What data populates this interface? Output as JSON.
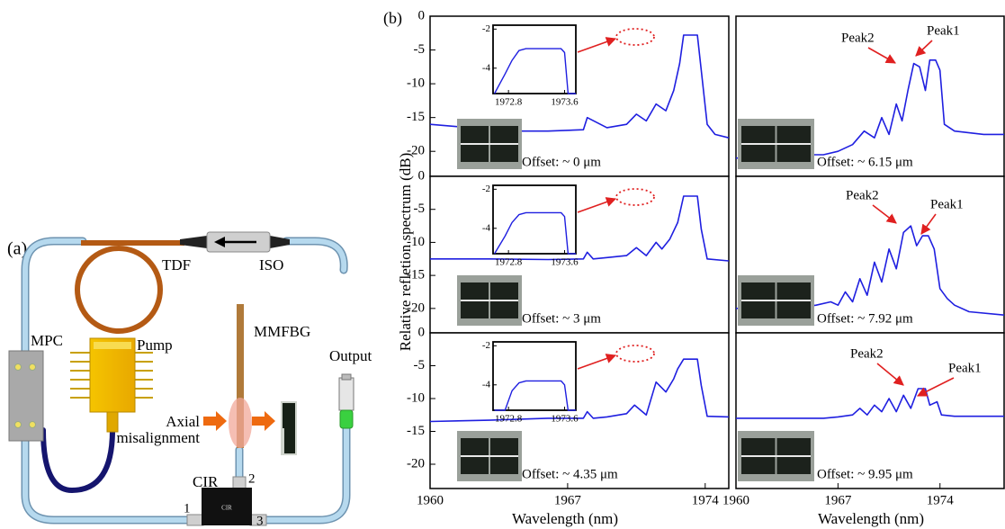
{
  "diagram": {
    "label": "(a)",
    "tdf": "TDF",
    "iso": "ISO",
    "mpc": "MPC",
    "pump": "Pump",
    "mmfbg": "MMFBG",
    "output": "Output",
    "misalignment_label": [
      "Axial",
      "misalignment"
    ],
    "cir": "CIR",
    "cir_text": "CIR",
    "ports": [
      "1",
      "2",
      "3"
    ]
  },
  "panel_b": {
    "label": "(b)",
    "ylabel": "Relative refletion spectrum (dB)"
  },
  "chart_data": [
    {
      "type": "line",
      "offset_label": "Offset: ~ 0 μm",
      "color": "#1f1fe0",
      "xlim": [
        1960,
        1975.2
      ],
      "ylim": [
        -23.7,
        0
      ],
      "yticks": [
        0,
        -5,
        -10,
        -15,
        -20
      ],
      "x": [
        1960,
        1962,
        1964,
        1966,
        1967.8,
        1968,
        1969,
        1970,
        1970.5,
        1971,
        1971.5,
        1972,
        1972.4,
        1972.7,
        1972.9,
        1973.6,
        1973.8,
        1974.1,
        1974.5,
        1975.2
      ],
      "values": [
        -16,
        -16.5,
        -17,
        -17,
        -16.8,
        -15,
        -16.5,
        -16,
        -14.5,
        -15.5,
        -13,
        -14,
        -11,
        -7,
        -2.8,
        -2.8,
        -8,
        -16,
        -17.5,
        -18
      ],
      "inset": {
        "xlim": [
          1972.58,
          1973.76
        ],
        "ylim": [
          -5.3,
          -1.8
        ],
        "xticks": [
          1972.8,
          1973.6
        ],
        "yticks": [
          -2,
          -4
        ],
        "x": [
          1972.6,
          1972.75,
          1972.85,
          1972.95,
          1973.05,
          1973.3,
          1973.55,
          1973.6,
          1973.65,
          1973.76
        ],
        "values": [
          -5.3,
          -4.3,
          -3.6,
          -3.1,
          -3.0,
          -3.0,
          -3.0,
          -3.2,
          -5.3,
          -5.3
        ]
      }
    },
    {
      "type": "line",
      "offset_label": "Offset: ~ 6.15 μm",
      "color": "#1f1fe0",
      "peak_labels": [
        "Peak2",
        "Peak1"
      ],
      "xlim": [
        1960,
        1978.4
      ],
      "ylim": [
        -23.7,
        0
      ],
      "x": [
        1960,
        1962,
        1964,
        1966,
        1967,
        1968,
        1968.8,
        1969.5,
        1970,
        1970.5,
        1971,
        1971.4,
        1971.8,
        1972.2,
        1972.6,
        1973,
        1973.3,
        1973.7,
        1974,
        1974.3,
        1975,
        1977,
        1978.4
      ],
      "values": [
        -21,
        -21,
        -20.5,
        -20.5,
        -20,
        -19,
        -17,
        -18,
        -15,
        -17.5,
        -13,
        -15.5,
        -11,
        -7,
        -7.5,
        -11,
        -6.5,
        -6.5,
        -8,
        -16,
        -17,
        -17.5,
        -17.5
      ]
    },
    {
      "type": "line",
      "offset_label": "Offset: ~ 3 μm",
      "color": "#1f1fe0",
      "xlim": [
        1960,
        1975.2
      ],
      "ylim": [
        -23.7,
        0
      ],
      "yticks": [
        0,
        -5,
        -10,
        -15,
        -20
      ],
      "x": [
        1960,
        1963,
        1966,
        1967.8,
        1968,
        1968.3,
        1969,
        1970,
        1970.5,
        1971,
        1971.5,
        1971.8,
        1972.2,
        1972.6,
        1972.9,
        1973.6,
        1973.8,
        1974.1,
        1975.2
      ],
      "values": [
        -12.5,
        -12.5,
        -12.6,
        -12.5,
        -11.5,
        -12.5,
        -12.3,
        -12,
        -10.8,
        -12,
        -10,
        -11,
        -9.5,
        -7,
        -3,
        -3,
        -8,
        -12.5,
        -12.8
      ],
      "inset": {
        "xlim": [
          1972.58,
          1973.76
        ],
        "ylim": [
          -5.3,
          -1.8
        ],
        "xticks": [
          1972.8,
          1973.6
        ],
        "yticks": [
          -2,
          -4
        ],
        "x": [
          1972.6,
          1972.75,
          1972.85,
          1972.95,
          1973.05,
          1973.3,
          1973.55,
          1973.6,
          1973.65,
          1973.76
        ],
        "values": [
          -5.3,
          -4.4,
          -3.7,
          -3.3,
          -3.2,
          -3.2,
          -3.2,
          -3.4,
          -5.3,
          -5.3
        ]
      }
    },
    {
      "type": "line",
      "offset_label": "Offset: ~ 7.92 μm",
      "color": "#1f1fe0",
      "peak_labels": [
        "Peak2",
        "Peak1"
      ],
      "xlim": [
        1960,
        1978.4
      ],
      "ylim": [
        -23.7,
        0
      ],
      "x": [
        1960,
        1962,
        1964,
        1965.5,
        1966.5,
        1967,
        1967.5,
        1968,
        1968.5,
        1969,
        1969.5,
        1970,
        1970.5,
        1971,
        1971.5,
        1972,
        1972.4,
        1972.8,
        1973.2,
        1973.6,
        1974,
        1974.5,
        1975,
        1976,
        1978.4
      ],
      "values": [
        -20,
        -20,
        -20,
        -19.5,
        -19,
        -19.5,
        -17.5,
        -19,
        -15.5,
        -18,
        -13,
        -16,
        -11,
        -14,
        -8.5,
        -7.5,
        -10.5,
        -9,
        -9,
        -11,
        -17,
        -18.5,
        -19.5,
        -20.5,
        -21
      ]
    },
    {
      "type": "line",
      "offset_label": "Offset: ~ 4.35 μm",
      "color": "#1f1fe0",
      "xlabel": "Wavelength (nm)",
      "xlim": [
        1960,
        1975.2
      ],
      "ylim": [
        -23.7,
        0
      ],
      "yticks": [
        0,
        -5,
        -10,
        -15,
        -20
      ],
      "xticks": [
        1960,
        1967,
        1974
      ],
      "x": [
        1960,
        1963,
        1966,
        1967.8,
        1968,
        1968.3,
        1969,
        1970,
        1970.4,
        1971,
        1971.5,
        1972,
        1972.4,
        1972.6,
        1972.9,
        1973.6,
        1973.8,
        1974.1,
        1975.2
      ],
      "values": [
        -13.5,
        -13.3,
        -13,
        -13,
        -12,
        -13,
        -12.8,
        -12.3,
        -11,
        -12.5,
        -7.5,
        -9,
        -7,
        -5.5,
        -4,
        -4,
        -8,
        -12.7,
        -12.8
      ],
      "inset": {
        "xlim": [
          1972.58,
          1973.76
        ],
        "ylim": [
          -5.3,
          -1.8
        ],
        "xticks": [
          1972.8,
          1973.6
        ],
        "yticks": [
          -2,
          -4
        ],
        "x": [
          1972.6,
          1972.75,
          1972.85,
          1972.95,
          1973.05,
          1973.3,
          1973.55,
          1973.6,
          1973.65,
          1973.76
        ],
        "values": [
          -5.3,
          -5.3,
          -4.3,
          -3.9,
          -3.8,
          -3.8,
          -3.8,
          -4.0,
          -5.3,
          -5.3
        ]
      }
    },
    {
      "type": "line",
      "offset_label": "Offset: ~ 9.95 μm",
      "color": "#1f1fe0",
      "peak_labels": [
        "Peak2",
        "Peak1"
      ],
      "xlabel": "Wavelength (nm)",
      "xlim": [
        1960,
        1978.4
      ],
      "ylim": [
        -23.7,
        0
      ],
      "xticks": [
        1960,
        1967,
        1974
      ],
      "x": [
        1960,
        1963,
        1966,
        1967,
        1968,
        1968.5,
        1969,
        1969.5,
        1970,
        1970.5,
        1971,
        1971.5,
        1972,
        1972.5,
        1973,
        1973.3,
        1973.8,
        1974.1,
        1975,
        1978.4
      ],
      "values": [
        -13,
        -13,
        -13,
        -12.8,
        -12.5,
        -11.5,
        -12.5,
        -11,
        -12,
        -10,
        -12,
        -9.5,
        -11.5,
        -8.5,
        -8.5,
        -11,
        -10.5,
        -12.5,
        -12.7,
        -12.7
      ]
    }
  ]
}
